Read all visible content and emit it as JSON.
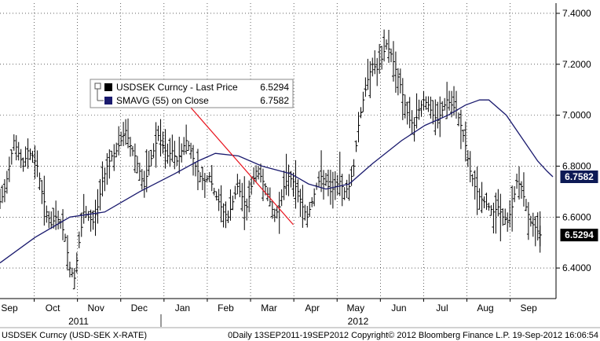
{
  "chart_data": {
    "type": "bar",
    "subtype": "ohlc-price-with-moving-average",
    "instrument": "USDSEK Curncy",
    "y_axis": {
      "range": [
        6.28,
        7.44
      ],
      "ticks": [
        "7.4000",
        "7.2000",
        "7.0000",
        "6.8000",
        "6.6000",
        "6.4000"
      ],
      "position": "right"
    },
    "x_axis": {
      "months": [
        "Sep",
        "Oct",
        "Nov",
        "Dec",
        "Jan",
        "Feb",
        "Mar",
        "Apr",
        "May",
        "Jun",
        "Jul",
        "Aug",
        "Sep"
      ],
      "years": [
        "2011",
        "2012"
      ]
    },
    "legend": {
      "placement": "top-left",
      "entries": [
        {
          "name": "USDSEK Curncy - Last Price",
          "value": "6.5294",
          "color": "#000000"
        },
        {
          "name": "SMAVG (55) on Close",
          "value": "6.7582",
          "color": "#1a1a6e"
        }
      ]
    },
    "last_value_tags": [
      {
        "label": "6.7582",
        "value": 6.7582,
        "color": "#0d1a55"
      },
      {
        "label": "6.5294",
        "value": 6.5294,
        "color": "#000000"
      }
    ],
    "price_close_path": [
      [
        0,
        6.66
      ],
      [
        4,
        6.7
      ],
      [
        8,
        6.8
      ],
      [
        12,
        6.9
      ],
      [
        16,
        6.85
      ],
      [
        20,
        6.8
      ],
      [
        24,
        6.86
      ],
      [
        28,
        6.84
      ],
      [
        32,
        6.8
      ],
      [
        36,
        6.7
      ],
      [
        40,
        6.62
      ],
      [
        44,
        6.57
      ],
      [
        48,
        6.6
      ],
      [
        52,
        6.58
      ],
      [
        56,
        6.52
      ],
      [
        60,
        6.4
      ],
      [
        64,
        6.36
      ],
      [
        68,
        6.5
      ],
      [
        72,
        6.62
      ],
      [
        76,
        6.6
      ],
      [
        80,
        6.58
      ],
      [
        84,
        6.64
      ],
      [
        88,
        6.74
      ],
      [
        92,
        6.8
      ],
      [
        96,
        6.84
      ],
      [
        100,
        6.86
      ],
      [
        104,
        6.9
      ],
      [
        108,
        6.94
      ],
      [
        112,
        6.88
      ],
      [
        116,
        6.84
      ],
      [
        120,
        6.78
      ],
      [
        124,
        6.72
      ],
      [
        128,
        6.8
      ],
      [
        132,
        6.86
      ],
      [
        136,
        6.92
      ],
      [
        140,
        6.88
      ],
      [
        144,
        6.84
      ],
      [
        148,
        6.86
      ],
      [
        152,
        6.82
      ],
      [
        156,
        6.86
      ],
      [
        160,
        6.9
      ],
      [
        164,
        6.86
      ],
      [
        168,
        6.8
      ],
      [
        172,
        6.76
      ],
      [
        176,
        6.74
      ],
      [
        180,
        6.76
      ],
      [
        184,
        6.7
      ],
      [
        188,
        6.66
      ],
      [
        192,
        6.62
      ],
      [
        196,
        6.6
      ],
      [
        200,
        6.66
      ],
      [
        204,
        6.72
      ],
      [
        208,
        6.68
      ],
      [
        212,
        6.64
      ],
      [
        216,
        6.72
      ],
      [
        220,
        6.78
      ],
      [
        224,
        6.76
      ],
      [
        228,
        6.72
      ],
      [
        232,
        6.66
      ],
      [
        236,
        6.6
      ],
      [
        240,
        6.64
      ],
      [
        244,
        6.72
      ],
      [
        248,
        6.76
      ],
      [
        252,
        6.74
      ],
      [
        256,
        6.7
      ],
      [
        260,
        6.64
      ],
      [
        264,
        6.6
      ],
      [
        268,
        6.66
      ],
      [
        272,
        6.72
      ],
      [
        276,
        6.76
      ],
      [
        280,
        6.74
      ],
      [
        284,
        6.7
      ],
      [
        288,
        6.72
      ],
      [
        292,
        6.74
      ],
      [
        296,
        6.7
      ],
      [
        300,
        6.72
      ],
      [
        304,
        6.8
      ],
      [
        308,
        6.96
      ],
      [
        312,
        7.06
      ],
      [
        316,
        7.14
      ],
      [
        320,
        7.2
      ],
      [
        324,
        7.18
      ],
      [
        328,
        7.22
      ],
      [
        332,
        7.28
      ],
      [
        336,
        7.24
      ],
      [
        340,
        7.18
      ],
      [
        344,
        7.12
      ],
      [
        348,
        7.04
      ],
      [
        352,
        6.98
      ],
      [
        356,
        6.96
      ],
      [
        360,
        7.02
      ],
      [
        364,
        7.06
      ],
      [
        368,
        7.04
      ],
      [
        372,
        7.0
      ],
      [
        376,
        6.98
      ],
      [
        380,
        7.02
      ],
      [
        384,
        7.06
      ],
      [
        388,
        7.04
      ],
      [
        392,
        7.02
      ],
      [
        396,
        6.96
      ],
      [
        400,
        6.88
      ],
      [
        404,
        6.78
      ],
      [
        408,
        6.72
      ],
      [
        412,
        6.68
      ],
      [
        416,
        6.66
      ],
      [
        420,
        6.64
      ],
      [
        424,
        6.62
      ],
      [
        428,
        6.64
      ],
      [
        432,
        6.6
      ],
      [
        436,
        6.58
      ],
      [
        440,
        6.64
      ],
      [
        444,
        6.74
      ],
      [
        448,
        6.72
      ],
      [
        452,
        6.64
      ],
      [
        456,
        6.58
      ],
      [
        460,
        6.56
      ],
      [
        464,
        6.53
      ]
    ],
    "moving_average_path": [
      [
        0,
        6.42
      ],
      [
        30,
        6.52
      ],
      [
        60,
        6.6
      ],
      [
        90,
        6.62
      ],
      [
        120,
        6.7
      ],
      [
        150,
        6.77
      ],
      [
        170,
        6.82
      ],
      [
        185,
        6.85
      ],
      [
        205,
        6.84
      ],
      [
        225,
        6.8
      ],
      [
        250,
        6.77
      ],
      [
        265,
        6.73
      ],
      [
        280,
        6.71
      ],
      [
        300,
        6.73
      ],
      [
        320,
        6.81
      ],
      [
        345,
        6.9
      ],
      [
        365,
        6.96
      ],
      [
        385,
        7.0
      ],
      [
        400,
        7.04
      ],
      [
        412,
        7.06
      ],
      [
        420,
        7.06
      ],
      [
        435,
        7.0
      ],
      [
        450,
        6.9
      ],
      [
        462,
        6.82
      ],
      [
        470,
        6.78
      ],
      [
        475,
        6.7582
      ]
    ],
    "trend_line": [
      [
        0,
        7.04
      ],
      [
        1,
        6.57
      ]
    ]
  },
  "footer": {
    "left": "USDSEK Curncy (USD-SEK X-RATE)",
    "right": "0Daily 13SEP2011-19SEP2012 Copyright© 2012 Bloomberg Finance L.P. 19-Sep-2012 16:06:54"
  },
  "colors": {
    "price": "#000000",
    "moving_average": "#1a1a6e",
    "trend_line": "#e8141e",
    "grid": "#000000"
  }
}
